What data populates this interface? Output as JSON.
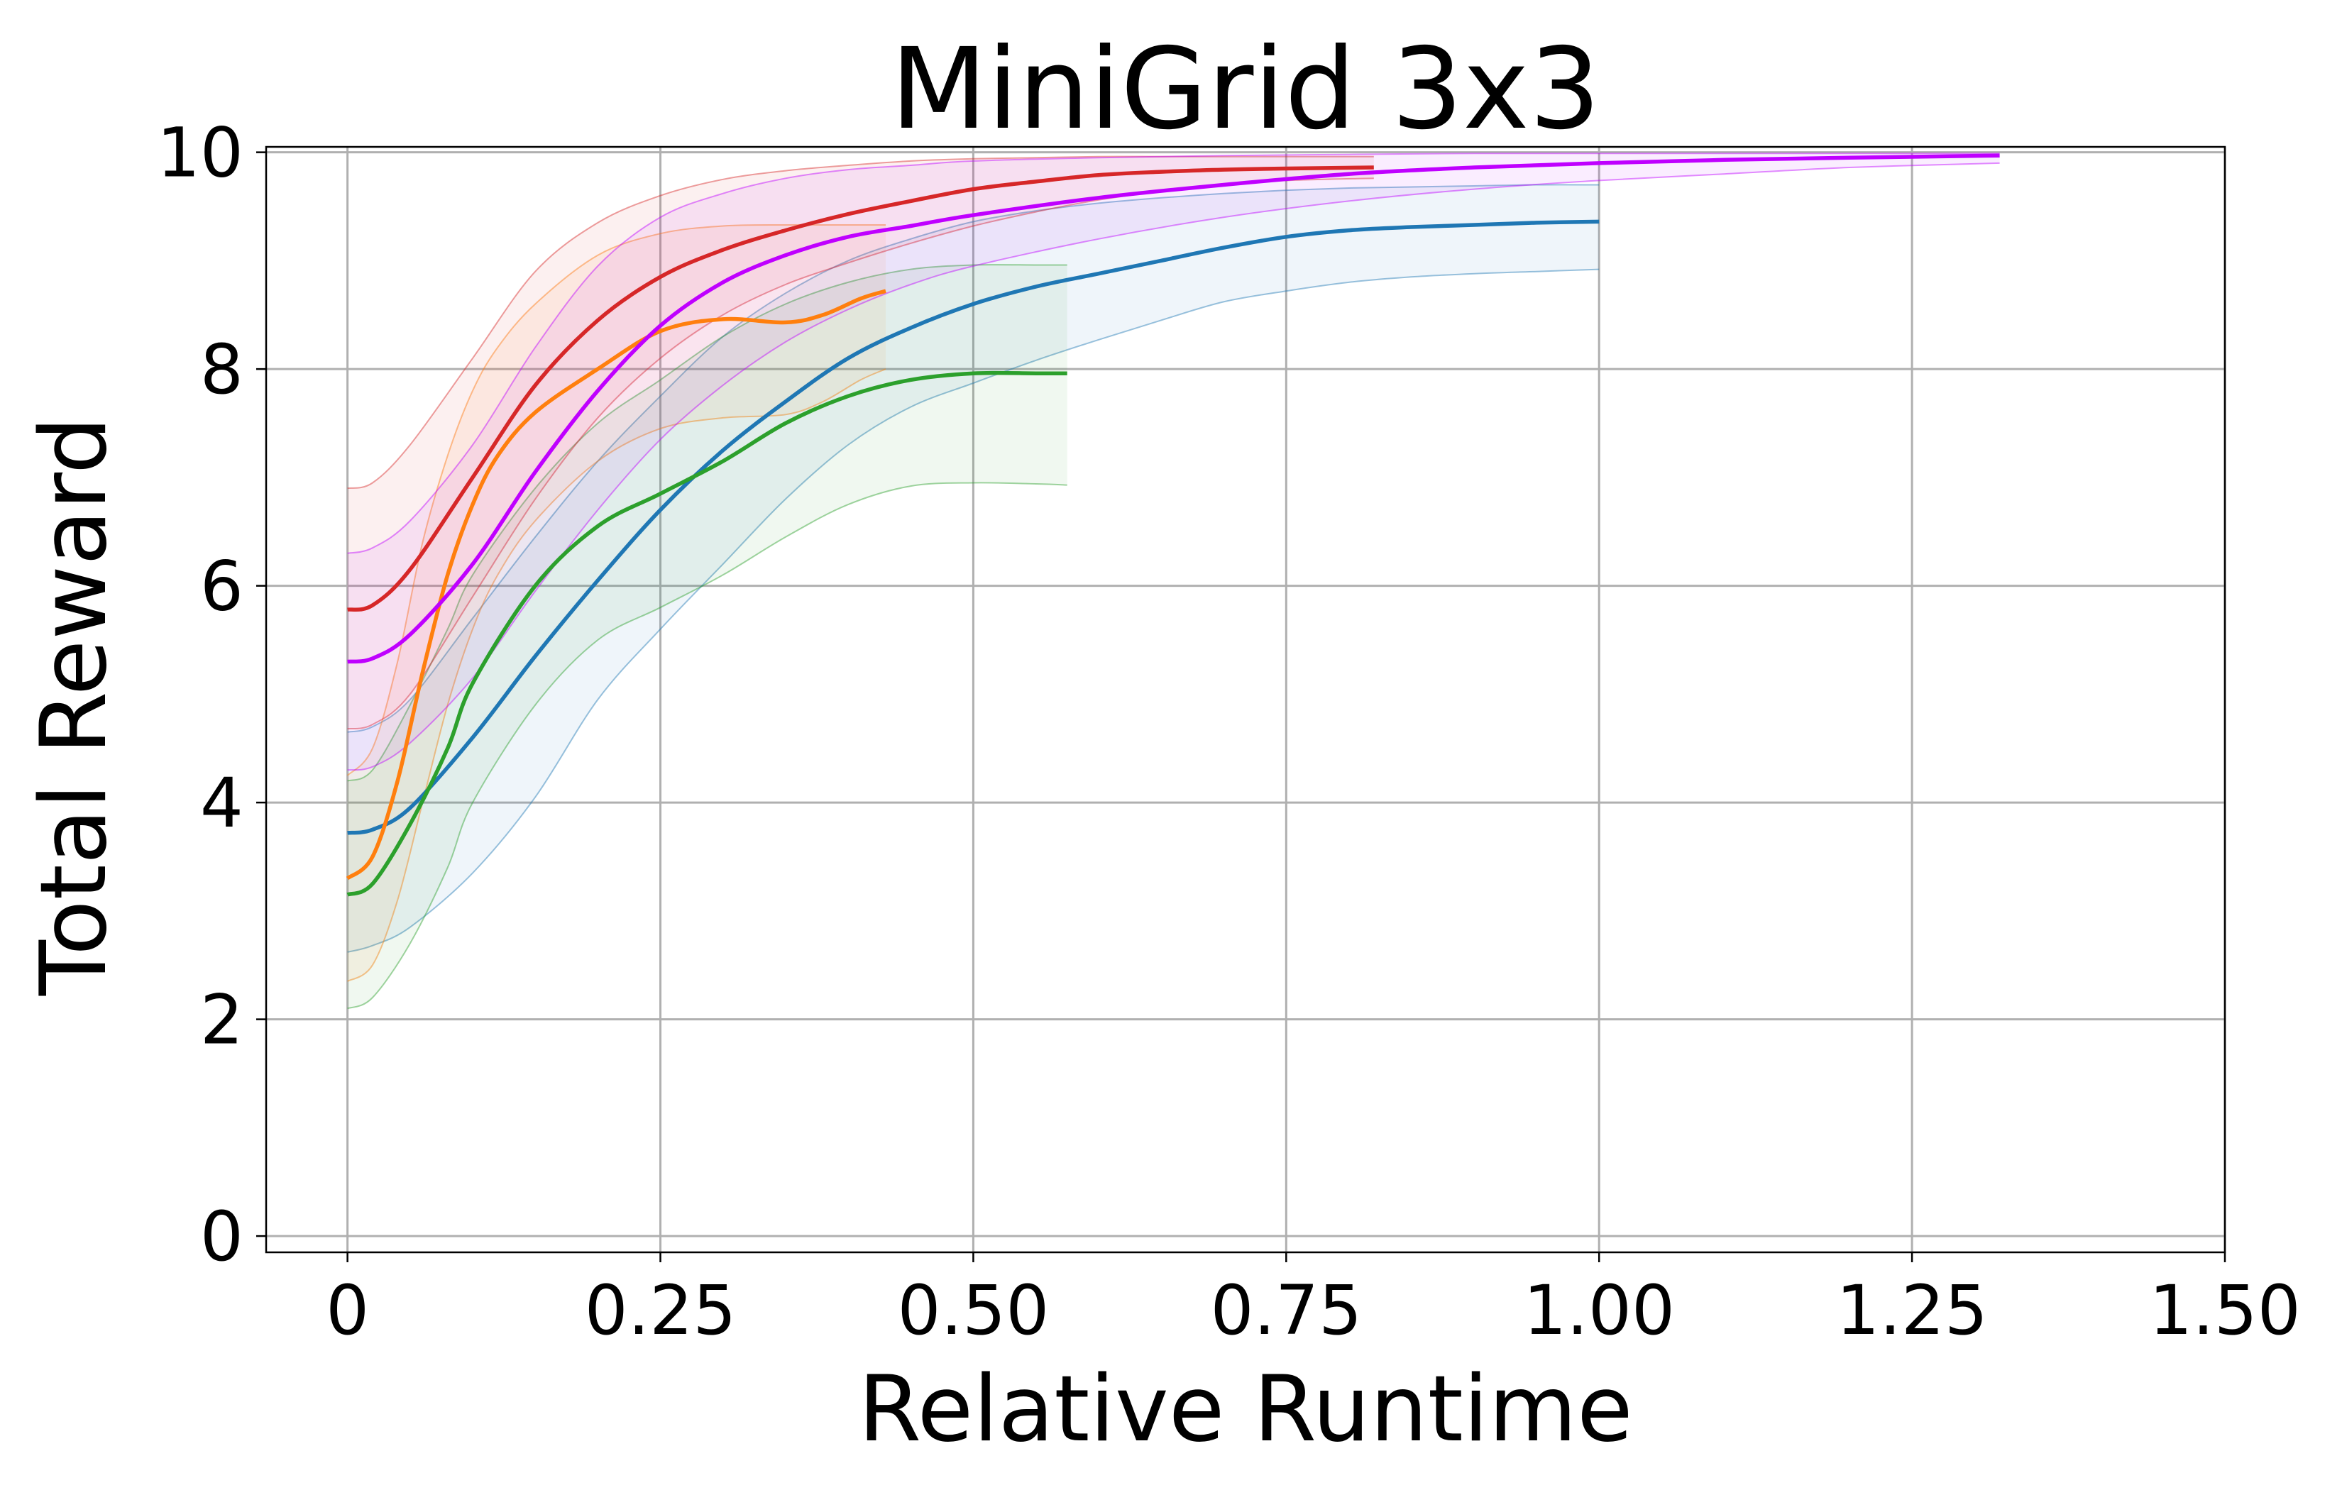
{
  "chart_data": {
    "type": "line",
    "title": "MiniGrid 3x3",
    "xlabel": "Relative Runtime",
    "ylabel": "Total Reward",
    "xlim": [
      -0.065,
      1.5
    ],
    "ylim": [
      -0.15,
      10.05
    ],
    "xticks": [
      0,
      0.25,
      0.5,
      0.75,
      1.0,
      1.25,
      1.5
    ],
    "xtick_labels": [
      "0",
      "0.25",
      "0.50",
      "0.75",
      "1.00",
      "1.25",
      "1.50"
    ],
    "yticks": [
      0,
      2,
      4,
      6,
      8,
      10
    ],
    "ytick_labels": [
      "0",
      "2",
      "4",
      "6",
      "8",
      "10"
    ],
    "grid": true,
    "legend": "none",
    "series": [
      {
        "color": "#1f77b4",
        "x": [
          0,
          0.02,
          0.05,
          0.1,
          0.15,
          0.2,
          0.25,
          0.3,
          0.35,
          0.4,
          0.45,
          0.5,
          0.55,
          0.6,
          0.65,
          0.7,
          0.75,
          0.8,
          0.85,
          0.9,
          0.95,
          1.0
        ],
        "y": [
          3.72,
          3.75,
          3.95,
          4.6,
          5.35,
          6.05,
          6.7,
          7.25,
          7.7,
          8.1,
          8.38,
          8.6,
          8.76,
          8.88,
          9.0,
          9.12,
          9.22,
          9.28,
          9.31,
          9.33,
          9.35,
          9.36
        ],
        "upper": [
          4.65,
          4.7,
          4.95,
          5.7,
          6.45,
          7.15,
          7.75,
          8.3,
          8.7,
          9.0,
          9.2,
          9.36,
          9.46,
          9.53,
          9.58,
          9.62,
          9.65,
          9.67,
          9.68,
          9.69,
          9.7,
          9.7
        ],
        "lower": [
          2.62,
          2.68,
          2.85,
          3.35,
          4.05,
          4.95,
          5.6,
          6.2,
          6.8,
          7.3,
          7.65,
          7.87,
          8.08,
          8.27,
          8.45,
          8.62,
          8.72,
          8.8,
          8.85,
          8.88,
          8.9,
          8.92
        ]
      },
      {
        "color": "#ff7f0e",
        "x": [
          0,
          0.02,
          0.04,
          0.06,
          0.08,
          0.1,
          0.12,
          0.15,
          0.2,
          0.25,
          0.3,
          0.35,
          0.38,
          0.41,
          0.43
        ],
        "y": [
          3.3,
          3.5,
          4.2,
          5.2,
          6.1,
          6.75,
          7.2,
          7.6,
          8.0,
          8.35,
          8.46,
          8.43,
          8.5,
          8.65,
          8.72
        ],
        "upper": [
          4.25,
          4.5,
          5.3,
          6.4,
          7.2,
          7.8,
          8.2,
          8.6,
          9.05,
          9.25,
          9.32,
          9.33,
          9.33,
          9.33,
          9.33
        ],
        "lower": [
          2.35,
          2.5,
          3.1,
          4.0,
          4.9,
          5.6,
          6.1,
          6.6,
          7.15,
          7.45,
          7.55,
          7.58,
          7.7,
          7.9,
          8.0
        ]
      },
      {
        "color": "#2ca02c",
        "x": [
          0,
          0.02,
          0.05,
          0.08,
          0.1,
          0.15,
          0.2,
          0.25,
          0.3,
          0.35,
          0.4,
          0.45,
          0.5,
          0.55,
          0.575
        ],
        "y": [
          3.15,
          3.25,
          3.8,
          4.5,
          5.1,
          6.0,
          6.55,
          6.85,
          7.15,
          7.5,
          7.75,
          7.9,
          7.96,
          7.96,
          7.96
        ],
        "upper": [
          4.2,
          4.3,
          4.9,
          5.6,
          6.1,
          6.9,
          7.5,
          7.9,
          8.3,
          8.6,
          8.8,
          8.92,
          8.96,
          8.96,
          8.96
        ],
        "lower": [
          2.1,
          2.2,
          2.7,
          3.4,
          4.0,
          4.9,
          5.5,
          5.8,
          6.1,
          6.45,
          6.75,
          6.92,
          6.95,
          6.94,
          6.93
        ]
      },
      {
        "color": "#d62728",
        "x": [
          0,
          0.02,
          0.05,
          0.1,
          0.15,
          0.2,
          0.25,
          0.3,
          0.35,
          0.4,
          0.45,
          0.5,
          0.55,
          0.6,
          0.65,
          0.7,
          0.75,
          0.82
        ],
        "y": [
          5.78,
          5.82,
          6.15,
          7.0,
          7.85,
          8.45,
          8.85,
          9.1,
          9.28,
          9.43,
          9.55,
          9.66,
          9.73,
          9.79,
          9.82,
          9.84,
          9.85,
          9.86
        ],
        "upper": [
          6.9,
          6.95,
          7.3,
          8.1,
          8.9,
          9.35,
          9.6,
          9.75,
          9.83,
          9.88,
          9.92,
          9.94,
          9.95,
          9.96,
          9.96,
          9.96,
          9.96,
          9.96
        ],
        "lower": [
          4.68,
          4.72,
          5.0,
          5.9,
          6.8,
          7.55,
          8.1,
          8.5,
          8.78,
          8.98,
          9.16,
          9.32,
          9.45,
          9.56,
          9.64,
          9.7,
          9.74,
          9.76
        ]
      },
      {
        "color": "#bf00ff",
        "x": [
          0,
          0.02,
          0.05,
          0.1,
          0.15,
          0.2,
          0.25,
          0.3,
          0.35,
          0.4,
          0.45,
          0.5,
          0.6,
          0.7,
          0.8,
          0.9,
          1.0,
          1.1,
          1.2,
          1.32
        ],
        "y": [
          5.3,
          5.33,
          5.55,
          6.2,
          7.05,
          7.8,
          8.4,
          8.8,
          9.05,
          9.22,
          9.32,
          9.42,
          9.58,
          9.7,
          9.8,
          9.86,
          9.9,
          9.93,
          9.95,
          9.97
        ],
        "upper": [
          6.3,
          6.35,
          6.6,
          7.3,
          8.2,
          8.95,
          9.4,
          9.62,
          9.76,
          9.84,
          9.88,
          9.92,
          9.95,
          9.97,
          9.98,
          9.99,
          9.99,
          9.99,
          9.99,
          9.99
        ],
        "lower": [
          4.3,
          4.33,
          4.55,
          5.15,
          5.95,
          6.7,
          7.35,
          7.85,
          8.25,
          8.55,
          8.78,
          8.95,
          9.2,
          9.4,
          9.55,
          9.66,
          9.74,
          9.8,
          9.86,
          9.9
        ]
      }
    ]
  }
}
